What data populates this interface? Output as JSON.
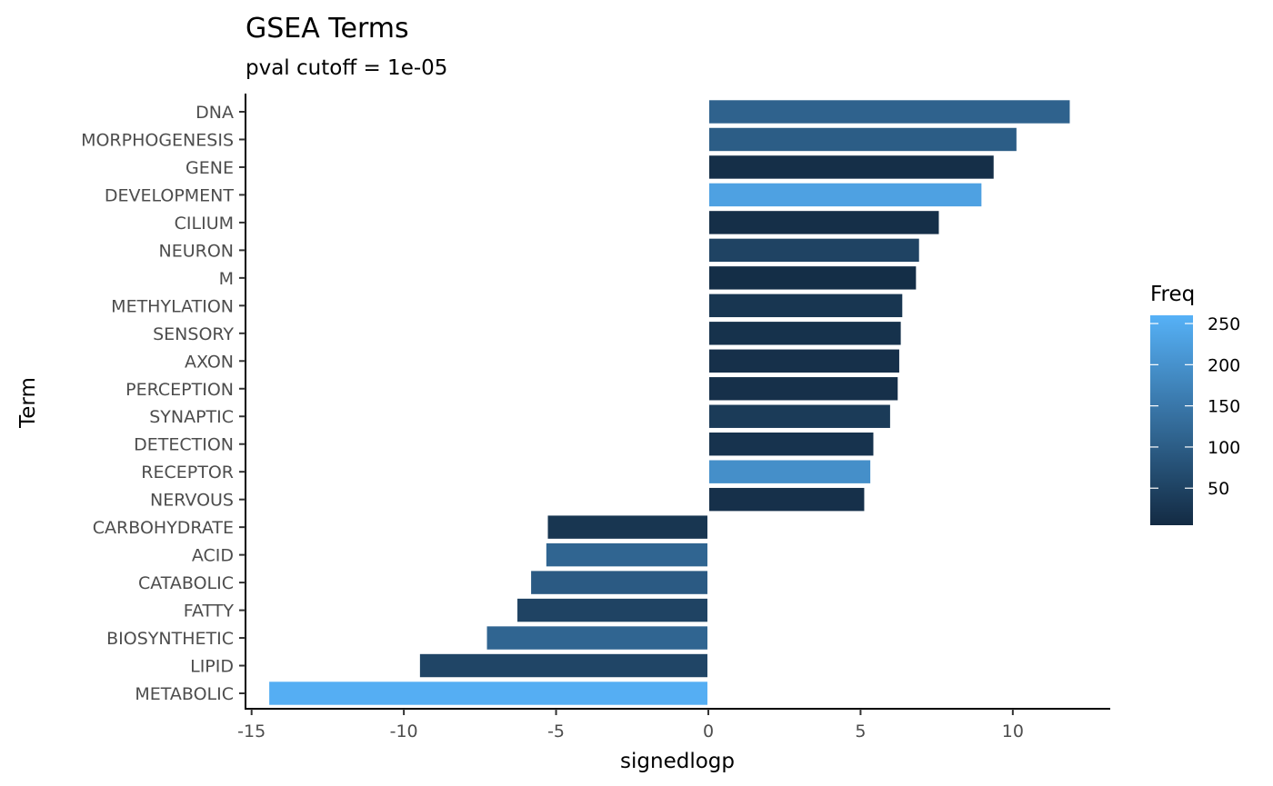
{
  "chart_data": {
    "type": "bar",
    "orientation": "horizontal",
    "title": "GSEA Terms",
    "subtitle": "pval cutoff = 1e-05",
    "xlabel": "signedlogp",
    "ylabel": "Term",
    "xlim": [
      -15.2,
      13.2
    ],
    "x_ticks": [
      -15,
      -10,
      -5,
      0,
      5,
      10
    ],
    "x_tick_labels": [
      "-15",
      "-10",
      "-5",
      "0",
      "5",
      "10"
    ],
    "categories": [
      "DNA",
      "MORPHOGENESIS",
      "GENE",
      "DEVELOPMENT",
      "CILIUM",
      "NEURON",
      "M",
      "METHYLATION",
      "SENSORY",
      "AXON",
      "PERCEPTION",
      "SYNAPTIC",
      "DETECTION",
      "RECEPTOR",
      "NERVOUS",
      "CARBOHYDRATE",
      "ACID",
      "CATABOLIC",
      "FATTY",
      "BIOSYNTHETIC",
      "LIPID",
      "METABOLIC"
    ],
    "values": [
      11.9,
      10.15,
      9.4,
      9.0,
      7.6,
      6.95,
      6.85,
      6.4,
      6.35,
      6.3,
      6.25,
      6.0,
      5.45,
      5.35,
      5.15,
      -5.3,
      -5.35,
      -5.85,
      -6.3,
      -7.3,
      -9.5,
      -14.45
    ],
    "freq": [
      110,
      100,
      12,
      230,
      12,
      50,
      10,
      25,
      18,
      15,
      15,
      35,
      20,
      195,
      15,
      25,
      115,
      95,
      50,
      115,
      55,
      255
    ],
    "grid": false,
    "legend": {
      "title": "Freq",
      "position": "right",
      "ticks": [
        50,
        100,
        150,
        200,
        250
      ],
      "tick_labels": [
        "50",
        "100",
        "150",
        "200",
        "250"
      ],
      "range": [
        5,
        260
      ],
      "color_low": "#132B43",
      "color_high": "#56B1F7"
    }
  }
}
